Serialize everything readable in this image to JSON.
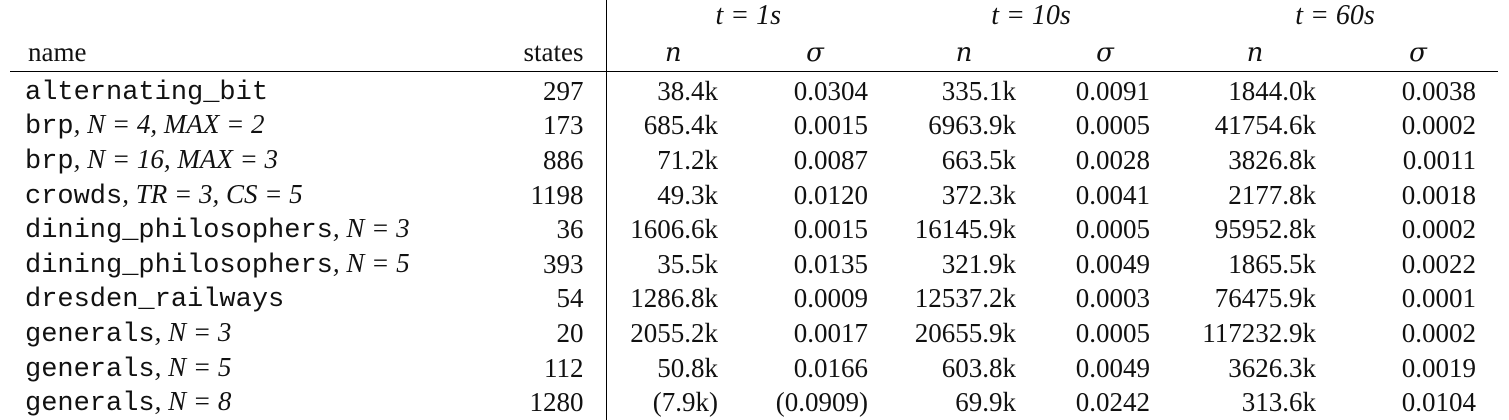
{
  "table": {
    "group_headers": [
      "t = 1s",
      "t = 10s",
      "t = 60s"
    ],
    "columns": {
      "name": "name",
      "states": "states",
      "n": "n",
      "sigma": "σ"
    },
    "rows": [
      {
        "model": "alternating_bit",
        "params": "",
        "states": "297",
        "n1": "38.4k",
        "s1": "0.0304",
        "n10": "335.1k",
        "s10": "0.0091",
        "n60": "1844.0k",
        "s60": "0.0038"
      },
      {
        "model": "brp",
        "params": ", N = 4, MAX = 2",
        "states": "173",
        "n1": "685.4k",
        "s1": "0.0015",
        "n10": "6963.9k",
        "s10": "0.0005",
        "n60": "41754.6k",
        "s60": "0.0002"
      },
      {
        "model": "brp",
        "params": ", N = 16, MAX = 3",
        "states": "886",
        "n1": "71.2k",
        "s1": "0.0087",
        "n10": "663.5k",
        "s10": "0.0028",
        "n60": "3826.8k",
        "s60": "0.0011"
      },
      {
        "model": "crowds",
        "params": ", TR = 3, CS = 5",
        "states": "1198",
        "n1": "49.3k",
        "s1": "0.0120",
        "n10": "372.3k",
        "s10": "0.0041",
        "n60": "2177.8k",
        "s60": "0.0018"
      },
      {
        "model": "dining_philosophers",
        "params": ", N = 3",
        "states": "36",
        "n1": "1606.6k",
        "s1": "0.0015",
        "n10": "16145.9k",
        "s10": "0.0005",
        "n60": "95952.8k",
        "s60": "0.0002"
      },
      {
        "model": "dining_philosophers",
        "params": ", N = 5",
        "states": "393",
        "n1": "35.5k",
        "s1": "0.0135",
        "n10": "321.9k",
        "s10": "0.0049",
        "n60": "1865.5k",
        "s60": "0.0022"
      },
      {
        "model": "dresden_railways",
        "params": "",
        "states": "54",
        "n1": "1286.8k",
        "s1": "0.0009",
        "n10": "12537.2k",
        "s10": "0.0003",
        "n60": "76475.9k",
        "s60": "0.0001"
      },
      {
        "model": "generals",
        "params": ", N = 3",
        "states": "20",
        "n1": "2055.2k",
        "s1": "0.0017",
        "n10": "20655.9k",
        "s10": "0.0005",
        "n60": "117232.9k",
        "s60": "0.0002"
      },
      {
        "model": "generals",
        "params": ", N = 5",
        "states": "112",
        "n1": "50.8k",
        "s1": "0.0166",
        "n10": "603.8k",
        "s10": "0.0049",
        "n60": "3626.3k",
        "s60": "0.0019"
      },
      {
        "model": "generals",
        "params": ", N = 8",
        "states": "1280",
        "n1": "(7.9k)",
        "s1": "(0.0909)",
        "n10": "69.9k",
        "s10": "0.0242",
        "n60": "313.6k",
        "s60": "0.0104"
      }
    ]
  }
}
